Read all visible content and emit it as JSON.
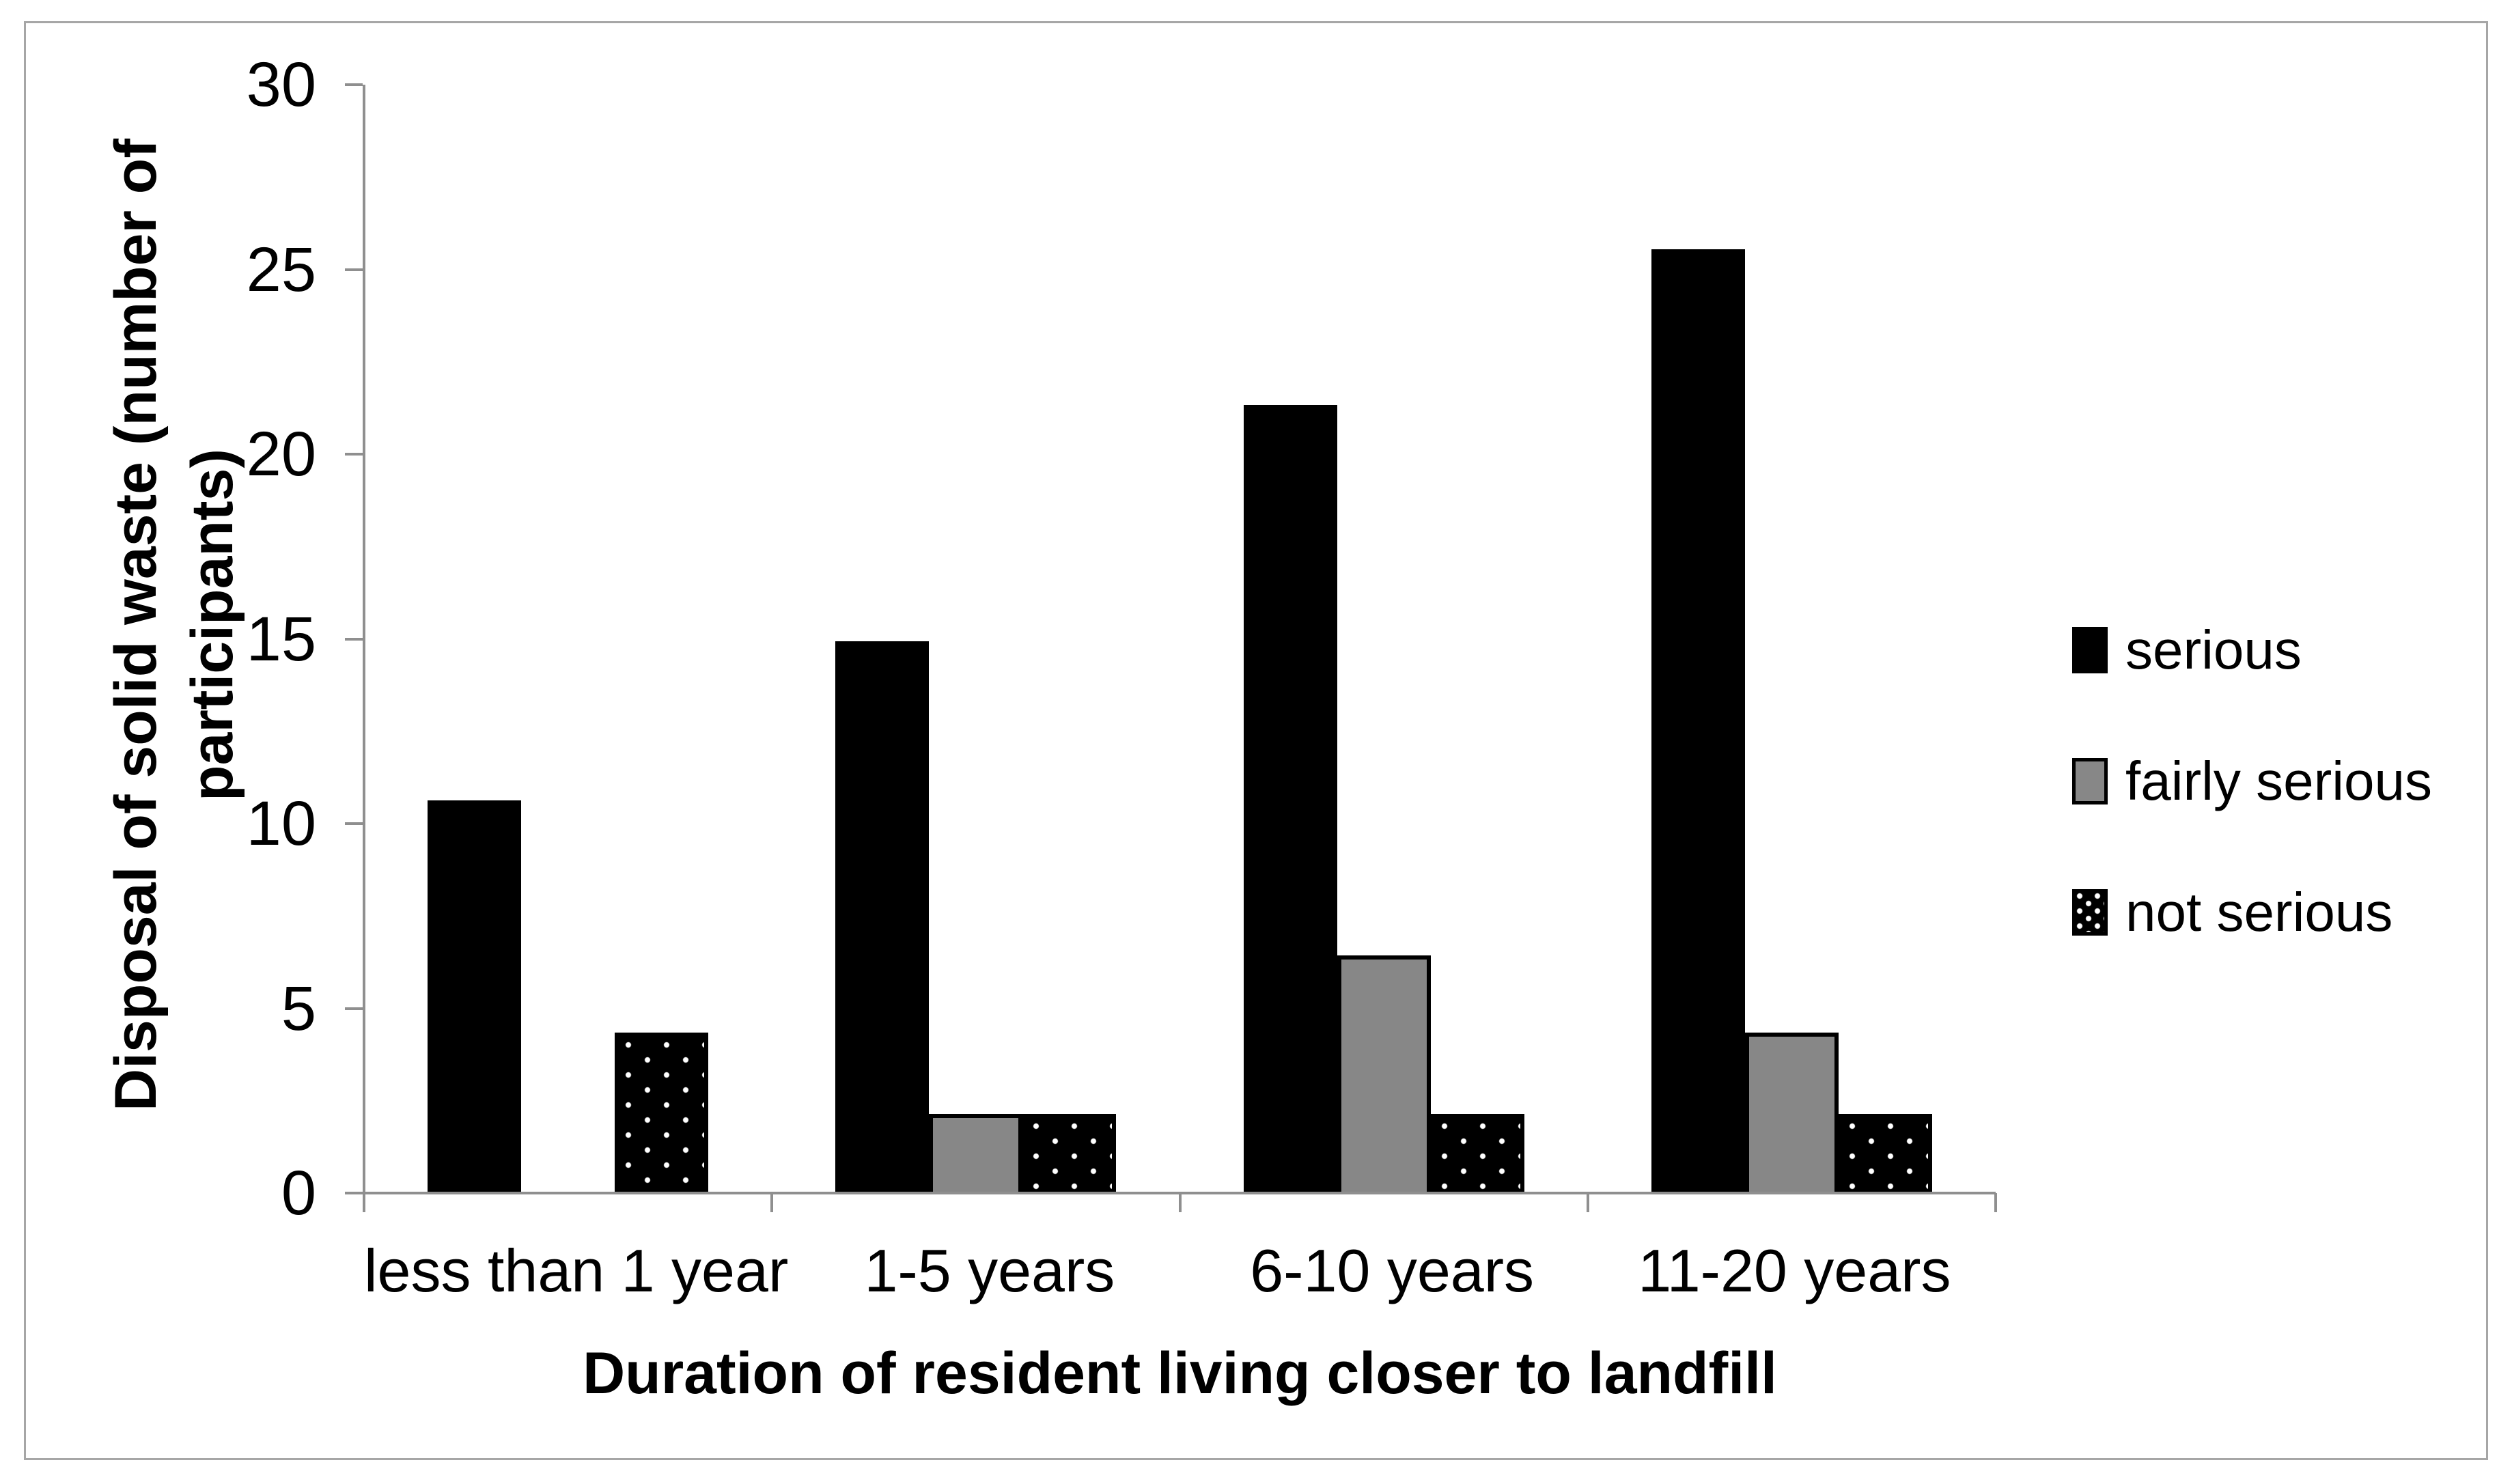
{
  "chart_data": {
    "type": "bar",
    "xlabel": "Duration of resident living closer to landfill",
    "ylabel": "Disposal of solid waste (number of participants)",
    "categories": [
      "less than 1 year",
      "1-5 years",
      "6-10 years",
      "11-20 years"
    ],
    "series": [
      {
        "name": "serious",
        "fill": "fill-black",
        "color": "#000000",
        "values": [
          10.6,
          14.9,
          21.3,
          25.5
        ]
      },
      {
        "name": "fairly serious",
        "fill": "fill-gray",
        "color": "#878787",
        "values": [
          0,
          2.1,
          6.4,
          4.3
        ]
      },
      {
        "name": "not serious",
        "fill": "fill-dots",
        "color": "#000000",
        "pattern": "white-dots-on-black",
        "values": [
          4.3,
          2.1,
          2.1,
          2.1
        ]
      }
    ],
    "ylim": [
      0,
      30
    ],
    "yticks": [
      0,
      5,
      10,
      15,
      20,
      25,
      30
    ],
    "grid": false,
    "legend_position": "right"
  },
  "colors": {
    "axis": "#8f8f8f",
    "frame": "#a6a6a6",
    "text": "#000000",
    "bar_black": "#000000",
    "bar_gray": "#878787"
  }
}
